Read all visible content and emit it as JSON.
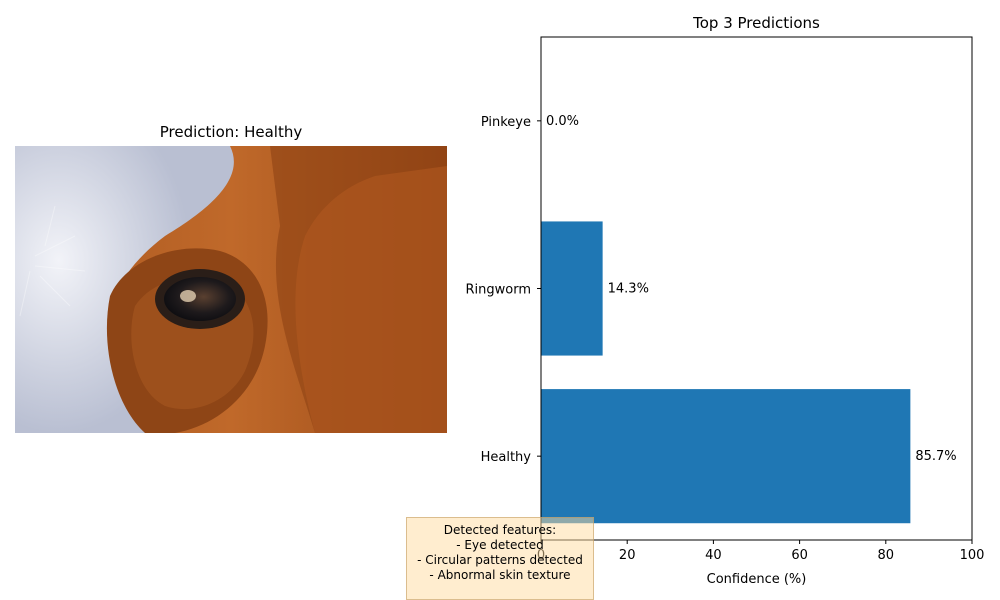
{
  "left_panel": {
    "title": "Prediction: Healthy",
    "image_subject": "close-up of a brown and white cow's eye"
  },
  "chart_data": {
    "type": "bar",
    "orientation": "horizontal",
    "title": "Top 3 Predictions",
    "categories": [
      "Healthy",
      "Ringworm",
      "Pinkeye"
    ],
    "values": [
      85.7,
      14.3,
      0.0
    ],
    "value_labels": [
      "85.7%",
      "14.3%",
      "0.0%"
    ],
    "xlabel": "Confidence (%)",
    "ylabel": "",
    "xlim": [
      0,
      100
    ],
    "xticks": [
      0,
      20,
      40,
      60,
      80,
      100
    ],
    "bar_color": "#1f77b4",
    "grid": false
  },
  "notes": {
    "lines": [
      "Detected features:",
      "- Eye detected",
      "- Circular patterns detected",
      "- Abnormal skin texture"
    ],
    "background": "#ffe6b8"
  }
}
